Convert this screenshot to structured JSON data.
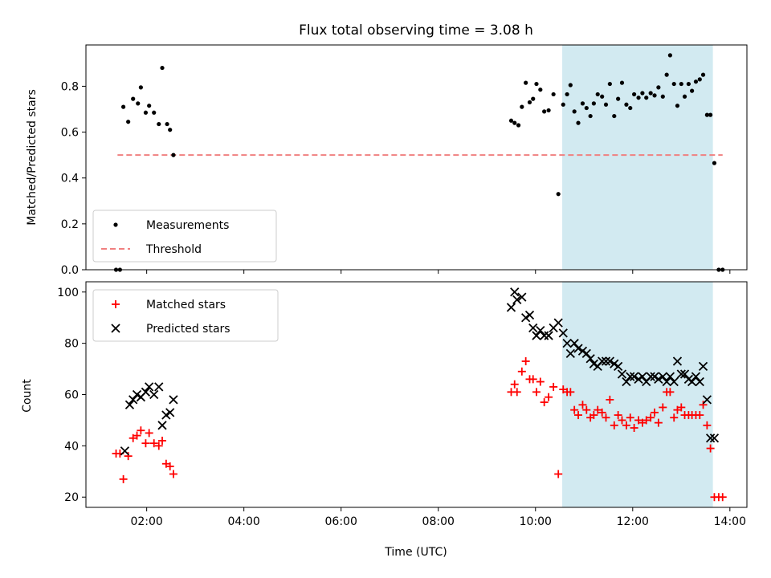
{
  "chart_data": [
    {
      "type": "scatter",
      "title": "Flux total observing time = 3.08 h",
      "ylabel": "Matched/Predicted stars",
      "xlabel": "",
      "xlim": [
        0.75,
        14.35
      ],
      "ylim": [
        0,
        0.98
      ],
      "x_ticks": [
        2,
        4,
        6,
        8,
        10,
        12,
        14
      ],
      "x_tick_labels": [],
      "y_ticks": [
        0.0,
        0.2,
        0.4,
        0.6,
        0.8
      ],
      "y_tick_labels": [
        "0.0",
        "0.2",
        "0.4",
        "0.6",
        "0.8"
      ],
      "shaded_region": {
        "x_start": 10.55,
        "x_end": 13.65,
        "color": "#add8e6"
      },
      "threshold": {
        "name": "Threshold",
        "value": 0.5,
        "x_range": [
          1.4,
          13.85
        ],
        "color": "#f08080",
        "style": "dashed"
      },
      "series": [
        {
          "name": "Measurements",
          "marker": "dot",
          "color": "#000000",
          "x": [
            1.37,
            1.45,
            1.52,
            1.62,
            1.72,
            1.82,
            1.88,
            1.98,
            2.05,
            2.15,
            2.25,
            2.32,
            2.42,
            2.48,
            2.55,
            9.5,
            9.57,
            9.65,
            9.72,
            9.8,
            9.88,
            9.95,
            10.02,
            10.1,
            10.18,
            10.27,
            10.37,
            10.47,
            10.57,
            10.65,
            10.72,
            10.8,
            10.88,
            10.97,
            11.05,
            11.13,
            11.2,
            11.28,
            11.37,
            11.45,
            11.53,
            11.62,
            11.7,
            11.78,
            11.87,
            11.95,
            12.03,
            12.12,
            12.2,
            12.28,
            12.37,
            12.45,
            12.53,
            12.62,
            12.7,
            12.77,
            12.85,
            12.92,
            13.0,
            13.07,
            13.15,
            13.22,
            13.3,
            13.38,
            13.45,
            13.53,
            13.6,
            13.68,
            13.77,
            13.85
          ],
          "y": [
            0.0,
            0.0,
            0.71,
            0.645,
            0.745,
            0.725,
            0.795,
            0.685,
            0.715,
            0.685,
            0.635,
            0.88,
            0.635,
            0.61,
            0.5,
            0.65,
            0.64,
            0.63,
            0.71,
            0.815,
            0.73,
            0.745,
            0.81,
            0.785,
            0.69,
            0.695,
            0.765,
            0.33,
            0.72,
            0.765,
            0.805,
            0.69,
            0.64,
            0.725,
            0.705,
            0.67,
            0.725,
            0.765,
            0.755,
            0.72,
            0.81,
            0.67,
            0.745,
            0.815,
            0.72,
            0.705,
            0.765,
            0.75,
            0.77,
            0.75,
            0.77,
            0.76,
            0.795,
            0.755,
            0.85,
            0.935,
            0.81,
            0.715,
            0.81,
            0.755,
            0.81,
            0.78,
            0.82,
            0.83,
            0.85,
            0.675,
            0.675,
            0.465,
            0.0,
            0.0
          ]
        }
      ],
      "legend": {
        "position": "bottom-left",
        "entries": [
          "Measurements",
          "Threshold"
        ]
      }
    },
    {
      "type": "scatter",
      "title": "",
      "xlabel": "Time (UTC)",
      "ylabel": "Count",
      "xlim": [
        0.75,
        14.35
      ],
      "ylim": [
        16,
        104
      ],
      "x_ticks": [
        2,
        4,
        6,
        8,
        10,
        12,
        14
      ],
      "x_tick_labels": [
        "02:00",
        "04:00",
        "06:00",
        "08:00",
        "10:00",
        "12:00",
        "14:00"
      ],
      "y_ticks": [
        20,
        40,
        60,
        80,
        100
      ],
      "y_tick_labels": [
        "20",
        "40",
        "60",
        "80",
        "100"
      ],
      "shaded_region": {
        "x_start": 10.55,
        "x_end": 13.65,
        "color": "#add8e6"
      },
      "series": [
        {
          "name": "Matched stars",
          "marker": "plus",
          "color": "#ff0000",
          "x": [
            1.37,
            1.45,
            1.52,
            1.62,
            1.72,
            1.8,
            1.88,
            1.98,
            2.05,
            2.15,
            2.25,
            2.32,
            2.4,
            2.48,
            2.55,
            9.5,
            9.57,
            9.62,
            9.72,
            9.8,
            9.88,
            9.95,
            10.02,
            10.1,
            10.18,
            10.27,
            10.37,
            10.47,
            10.57,
            10.65,
            10.72,
            10.8,
            10.88,
            10.97,
            11.05,
            11.13,
            11.2,
            11.28,
            11.37,
            11.45,
            11.53,
            11.62,
            11.7,
            11.78,
            11.87,
            11.95,
            12.03,
            12.12,
            12.2,
            12.28,
            12.37,
            12.45,
            12.53,
            12.62,
            12.7,
            12.77,
            12.85,
            12.92,
            13.0,
            13.07,
            13.15,
            13.22,
            13.3,
            13.38,
            13.45,
            13.53,
            13.6,
            13.68,
            13.77,
            13.85
          ],
          "y": [
            37,
            37,
            27,
            36,
            43,
            44,
            46,
            41,
            45,
            41,
            40,
            42,
            33,
            32,
            29,
            61,
            64,
            61,
            69,
            73,
            66,
            66,
            61,
            65,
            57,
            59,
            63,
            29,
            62,
            61,
            61,
            54,
            52,
            56,
            54,
            51,
            52,
            54,
            53,
            51,
            58,
            48,
            52,
            50,
            48,
            51,
            47,
            50,
            49,
            50,
            51,
            53,
            49,
            55,
            61,
            61,
            51,
            54,
            55,
            52,
            52,
            52,
            52,
            52,
            56,
            48,
            39,
            20,
            20,
            20
          ],
          "x_dup_note": ""
        },
        {
          "name": "Predicted stars",
          "marker": "x",
          "color": "#000000",
          "x": [
            1.55,
            1.65,
            1.72,
            1.8,
            1.88,
            1.98,
            2.05,
            2.15,
            2.25,
            2.32,
            2.4,
            2.48,
            2.55,
            9.5,
            9.57,
            9.62,
            9.72,
            9.8,
            9.88,
            9.95,
            10.02,
            10.1,
            10.18,
            10.27,
            10.37,
            10.47,
            10.57,
            10.65,
            10.72,
            10.8,
            10.88,
            10.97,
            11.05,
            11.13,
            11.2,
            11.28,
            11.37,
            11.45,
            11.53,
            11.62,
            11.7,
            11.78,
            11.87,
            11.95,
            12.03,
            12.12,
            12.2,
            12.28,
            12.37,
            12.45,
            12.53,
            12.62,
            12.7,
            12.77,
            12.85,
            12.92,
            13.0,
            13.07,
            13.15,
            13.22,
            13.3,
            13.38,
            13.45,
            13.53,
            13.6,
            13.68
          ],
          "y": [
            38,
            56,
            58,
            60,
            59,
            61,
            63,
            60,
            63,
            48,
            52,
            53,
            58,
            94,
            100,
            97,
            98,
            90,
            91,
            86,
            83,
            85,
            83,
            83,
            86,
            88,
            84,
            80,
            76,
            80,
            78,
            77,
            76,
            74,
            72,
            71,
            73,
            73,
            73,
            72,
            71,
            68,
            65,
            67,
            67,
            66,
            67,
            65,
            67,
            67,
            66,
            67,
            65,
            67,
            65,
            73,
            68,
            68,
            66,
            65,
            67,
            65,
            71,
            58,
            43,
            43
          ]
        }
      ],
      "legend": {
        "position": "top-left",
        "entries": [
          "Matched stars",
          "Predicted stars"
        ]
      }
    }
  ]
}
